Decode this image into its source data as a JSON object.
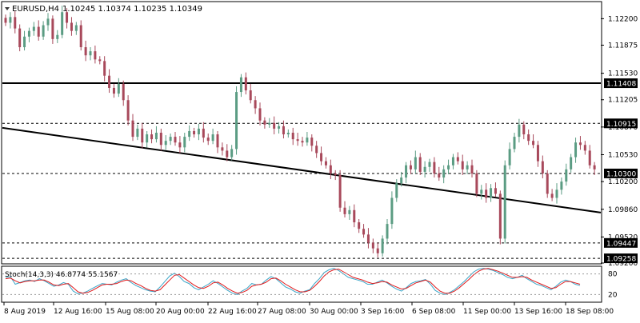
{
  "header": {
    "symbol_text": "EURUSD,H4",
    "ohlc_text": "1.10245 1.10374 1.10235 1.10349"
  },
  "colors": {
    "background": "#ffffff",
    "bull_candle": "#5b9c83",
    "bear_candle": "#a8495b",
    "grid": "#000000",
    "stoch_main": "#3aa6c8",
    "stoch_signal": "#e0191b",
    "price_label_bg": "#000000",
    "price_label_text": "#ffffff"
  },
  "icons": {
    "menu": "triangle-down-icon"
  },
  "chart_data": [
    {
      "type": "candlestick",
      "title": "EURUSD,H4",
      "ohlc_readout": [
        1.10245,
        1.10374,
        1.10235,
        1.10349
      ],
      "y_ticks": [
        1.122,
        1.11875,
        1.1153,
        1.11205,
        1.1087,
        1.1053,
        1.102,
        1.0986,
        1.0952,
        1.092
      ],
      "ylim": [
        1.092,
        1.124
      ],
      "x_tick_labels": [
        "8 Aug 2019",
        "12 Aug 16:00",
        "15 Aug 08:00",
        "20 Aug 00:00",
        "22 Aug 16:00",
        "27 Aug 08:00",
        "30 Aug 00:00",
        "3 Sep 16:00",
        "6 Sep 08:00",
        "11 Sep 00:00",
        "13 Sep 16:00",
        "18 Sep 08:00"
      ],
      "horizontal_levels": [
        {
          "price": 1.11408,
          "label": "1.11408",
          "style": "solid"
        },
        {
          "price": 1.10915,
          "label": "1.10915",
          "style": "dashed"
        },
        {
          "price": 1.103,
          "label": "1.10300",
          "style": "dashed"
        },
        {
          "price": 1.09447,
          "label": "1.09447",
          "style": "dashed"
        },
        {
          "price": 1.09258,
          "label": "1.09258",
          "style": "dashed"
        }
      ],
      "trendline": {
        "from_price": 1.1086,
        "to_price": 1.0982,
        "style": "solid"
      },
      "close_series": [
        1.1215,
        1.1222,
        1.1208,
        1.1185,
        1.1198,
        1.1205,
        1.121,
        1.1198,
        1.1212,
        1.122,
        1.1195,
        1.12,
        1.1228,
        1.1215,
        1.1205,
        1.1212,
        1.1185,
        1.1175,
        1.118,
        1.117,
        1.1168,
        1.115,
        1.1135,
        1.1128,
        1.114,
        1.112,
        1.1095,
        1.1075,
        1.1085,
        1.1068,
        1.1078,
        1.1072,
        1.108,
        1.1065,
        1.107,
        1.1075,
        1.1068,
        1.1062,
        1.1075,
        1.1082,
        1.1078,
        1.1085,
        1.1074,
        1.107,
        1.1078,
        1.1062,
        1.1058,
        1.105,
        1.106,
        1.113,
        1.1148,
        1.1132,
        1.112,
        1.111,
        1.1095,
        1.109,
        1.1092,
        1.1085,
        1.1088,
        1.1078,
        1.108,
        1.1072,
        1.107,
        1.1068,
        1.1074,
        1.1064,
        1.1055,
        1.1045,
        1.104,
        1.103,
        1.1028,
        1.0988,
        1.098,
        1.0985,
        1.097,
        1.0962,
        1.0955,
        1.0945,
        1.0938,
        1.0932,
        1.095,
        1.0968,
        1.1,
        1.1018,
        1.1025,
        1.104,
        1.1035,
        1.105,
        1.1032,
        1.1038,
        1.1044,
        1.103,
        1.1025,
        1.1035,
        1.104,
        1.105,
        1.1045,
        1.1035,
        1.104,
        1.103,
        1.1005,
        1.101,
        1.1,
        1.1012,
        1.1005,
        1.095,
        1.104,
        1.106,
        1.1075,
        1.109,
        1.1078,
        1.107,
        1.1065,
        1.1045,
        1.103,
        1.1005,
        1.1,
        1.101,
        1.102,
        1.1035,
        1.105,
        1.1068,
        1.1065,
        1.1058,
        1.104,
        1.1035
      ],
      "close_series_note": ""
    },
    {
      "type": "line",
      "title": "Stoch(14,3,3) 46.8774 55.1567",
      "indicator_label": "Stoch(14,3,3)",
      "main_value": 46.8774,
      "signal_value": 55.1567,
      "y_ticks": [
        80,
        20
      ],
      "ylim": [
        0,
        100
      ],
      "series": [
        {
          "name": "main",
          "values": [
            70,
            72,
            50,
            55,
            60,
            62,
            58,
            66,
            60,
            52,
            44,
            48,
            55,
            50,
            30,
            22,
            24,
            30,
            38,
            45,
            52,
            50,
            48,
            56,
            62,
            66,
            55,
            46,
            40,
            34,
            30,
            28,
            42,
            58,
            74,
            82,
            72,
            58,
            52,
            40,
            34,
            42,
            50,
            60,
            52,
            42,
            32,
            24,
            20,
            30,
            38,
            52,
            48,
            50,
            62,
            72,
            66,
            54,
            42,
            36,
            28,
            24,
            30,
            34,
            52,
            66,
            84,
            92,
            96,
            90,
            80,
            70,
            66,
            62,
            58,
            50,
            50,
            56,
            62,
            54,
            44,
            36,
            30,
            40,
            52,
            58,
            60,
            64,
            50,
            32,
            24,
            20,
            26,
            34,
            46,
            58,
            72,
            86,
            94,
            96,
            94,
            90,
            84,
            78,
            70,
            66,
            70,
            76,
            66,
            58,
            50,
            46,
            40,
            34,
            44,
            56,
            62,
            58,
            50,
            46
          ]
        },
        {
          "name": "signal",
          "values": [
            66,
            68,
            60,
            54,
            58,
            60,
            60,
            62,
            62,
            56,
            48,
            46,
            50,
            52,
            40,
            28,
            24,
            26,
            32,
            40,
            48,
            50,
            50,
            52,
            58,
            62,
            60,
            52,
            46,
            38,
            32,
            30,
            34,
            48,
            62,
            76,
            78,
            68,
            58,
            48,
            40,
            38,
            44,
            54,
            56,
            48,
            38,
            30,
            24,
            26,
            32,
            44,
            48,
            50,
            56,
            66,
            68,
            60,
            50,
            42,
            34,
            28,
            28,
            32,
            44,
            58,
            74,
            86,
            92,
            94,
            86,
            78,
            70,
            66,
            62,
            56,
            52,
            54,
            58,
            56,
            48,
            42,
            36,
            38,
            46,
            54,
            58,
            62,
            56,
            42,
            30,
            24,
            24,
            30,
            40,
            52,
            64,
            78,
            88,
            94,
            96,
            92,
            88,
            82,
            76,
            70,
            70,
            72,
            70,
            62,
            56,
            50,
            44,
            38,
            40,
            50,
            58,
            58,
            54,
            50
          ]
        }
      ]
    }
  ]
}
